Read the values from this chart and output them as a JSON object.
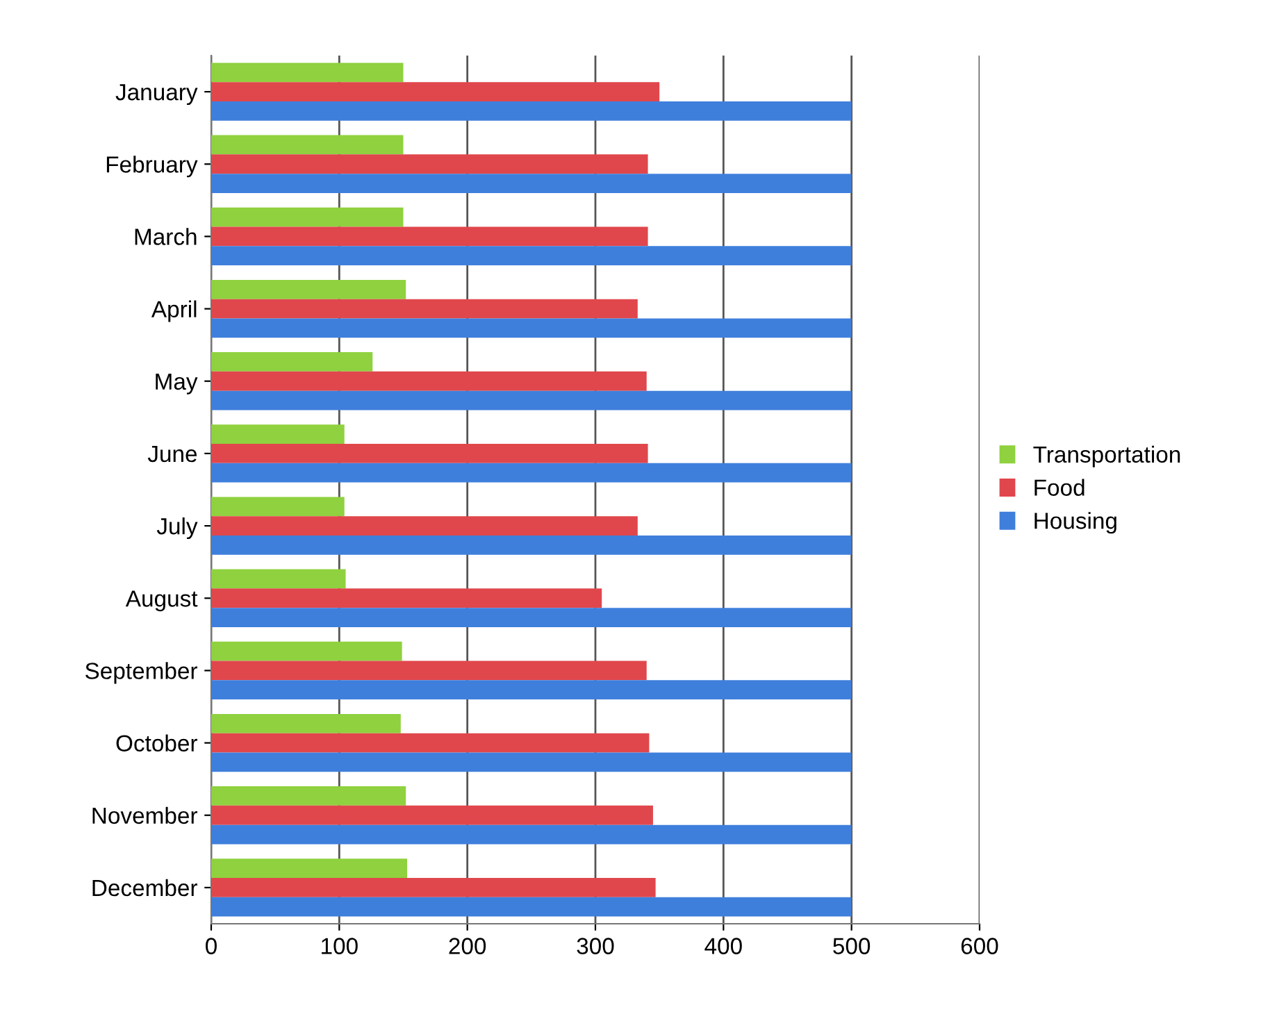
{
  "chart_data": {
    "type": "bar",
    "orientation": "horizontal",
    "categories": [
      "January",
      "February",
      "March",
      "April",
      "May",
      "June",
      "July",
      "August",
      "September",
      "October",
      "November",
      "December"
    ],
    "series": [
      {
        "name": "Transportation",
        "color": "#8fd13f",
        "values": [
          150,
          150,
          150,
          152,
          126,
          104,
          104,
          105,
          149,
          148,
          152,
          153
        ]
      },
      {
        "name": "Food",
        "color": "#e0474c",
        "values": [
          350,
          341,
          341,
          333,
          340,
          341,
          333,
          305,
          340,
          342,
          345,
          347
        ]
      },
      {
        "name": "Housing",
        "color": "#3f7fdc",
        "values": [
          500,
          500,
          500,
          500,
          500,
          500,
          500,
          500,
          500,
          500,
          500,
          500
        ]
      }
    ],
    "xlim": [
      0,
      600
    ],
    "xticks": [
      0,
      100,
      200,
      300,
      400,
      500,
      600
    ],
    "grid": "x",
    "legend": "right"
  }
}
